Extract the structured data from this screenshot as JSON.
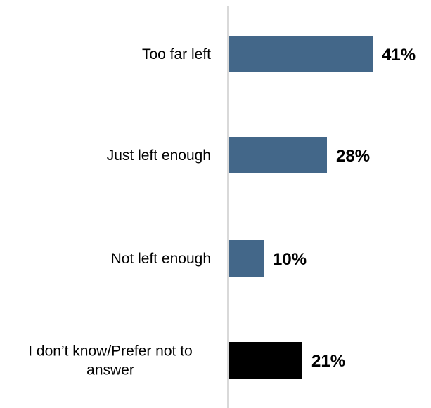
{
  "chart_data": {
    "type": "bar",
    "orientation": "horizontal",
    "categories": [
      [
        "Too far left"
      ],
      [
        "Just left enough"
      ],
      [
        "Not left enough"
      ],
      [
        "I don’t know/Prefer not to",
        "answer"
      ]
    ],
    "values": [
      41,
      28,
      10,
      21
    ],
    "value_labels": [
      "41%",
      "28%",
      "10%",
      "21%"
    ],
    "bar_colors": [
      "#436789",
      "#436789",
      "#436789",
      "#000000"
    ],
    "axis_color": "#d9d9d9",
    "xlim": [
      0,
      50
    ],
    "grid": false,
    "legend": "none",
    "title": "",
    "xlabel": "",
    "ylabel": ""
  }
}
